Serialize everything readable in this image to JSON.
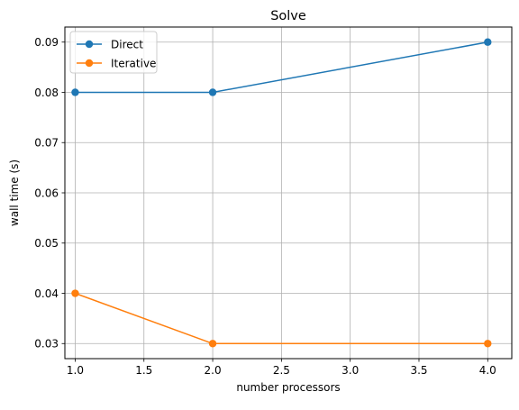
{
  "chart_data": {
    "type": "line",
    "title": "Solve",
    "xlabel": "number processors",
    "ylabel": "wall time (s)",
    "xlim": [
      0.925,
      4.175
    ],
    "ylim": [
      0.027,
      0.093
    ],
    "xticks": [
      "1.0",
      "1.5",
      "2.0",
      "2.5",
      "3.0",
      "3.5",
      "4.0"
    ],
    "yticks": [
      "0.03",
      "0.04",
      "0.05",
      "0.06",
      "0.07",
      "0.08",
      "0.09"
    ],
    "grid": true,
    "legend_position": "upper left",
    "series": [
      {
        "name": "Direct",
        "color": "#1f77b4",
        "x": [
          1,
          2,
          4
        ],
        "y": [
          0.08,
          0.08,
          0.09
        ]
      },
      {
        "name": "Iterative",
        "color": "#ff7f0e",
        "x": [
          1,
          2,
          4
        ],
        "y": [
          0.04,
          0.03,
          0.03
        ]
      }
    ]
  }
}
